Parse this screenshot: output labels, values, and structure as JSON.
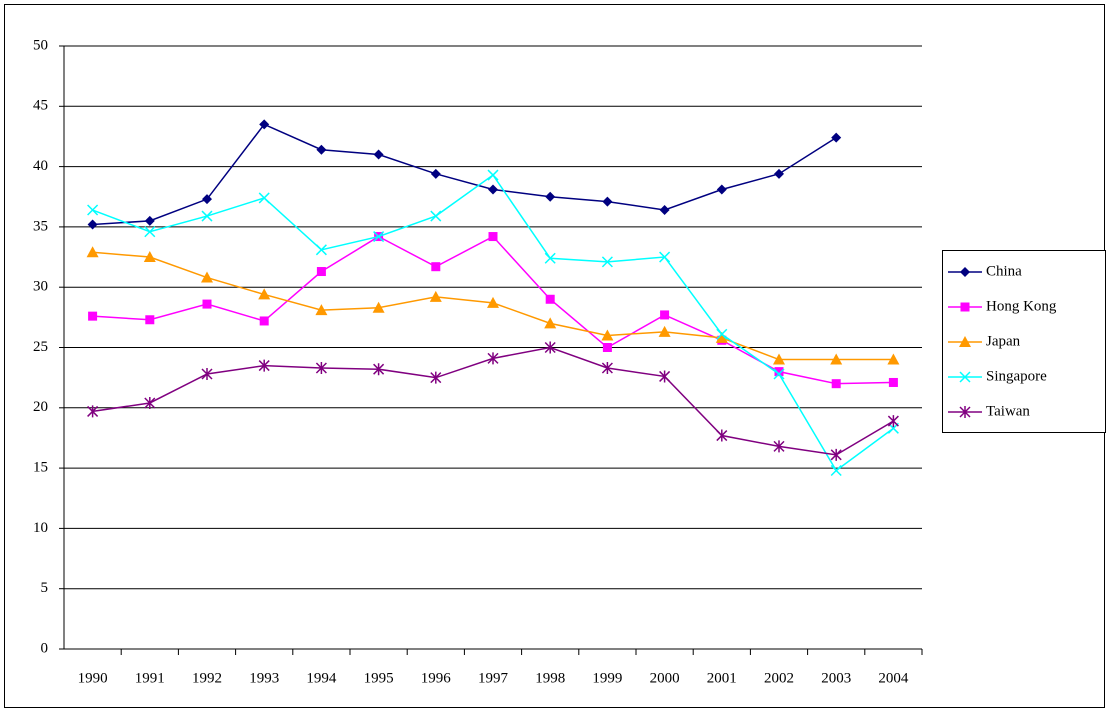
{
  "chart_data": {
    "type": "line",
    "categories": [
      "1990",
      "1991",
      "1992",
      "1993",
      "1994",
      "1995",
      "1996",
      "1997",
      "1998",
      "1999",
      "2000",
      "2001",
      "2002",
      "2003",
      "2004"
    ],
    "series": [
      {
        "name": "China",
        "color": "#000080",
        "marker": "diamond",
        "values": [
          35.2,
          35.5,
          37.3,
          43.5,
          41.4,
          41.0,
          39.4,
          38.1,
          37.5,
          37.1,
          36.4,
          38.1,
          39.4,
          42.4,
          null
        ]
      },
      {
        "name": "Hong Kong",
        "color": "#ff00ff",
        "marker": "square",
        "values": [
          27.6,
          27.3,
          28.6,
          27.2,
          31.3,
          34.2,
          31.7,
          34.2,
          29.0,
          25.0,
          27.7,
          25.6,
          23.0,
          22.0,
          22.1
        ]
      },
      {
        "name": "Japan",
        "color": "#ff9900",
        "marker": "triangle",
        "values": [
          32.9,
          32.5,
          30.8,
          29.4,
          28.1,
          28.3,
          29.2,
          28.7,
          27.0,
          26.0,
          26.3,
          25.8,
          24.0,
          24.0,
          24.0
        ]
      },
      {
        "name": "Singapore",
        "color": "#00ffff",
        "marker": "x",
        "values": [
          36.4,
          34.6,
          35.9,
          37.4,
          33.1,
          34.2,
          35.9,
          39.3,
          32.4,
          32.1,
          32.5,
          26.1,
          22.8,
          14.8,
          18.3
        ]
      },
      {
        "name": "Taiwan",
        "color": "#800080",
        "marker": "star",
        "values": [
          19.7,
          20.4,
          22.8,
          23.5,
          23.3,
          23.2,
          22.5,
          24.1,
          25.0,
          23.3,
          22.6,
          17.7,
          16.8,
          16.1,
          18.9
        ]
      }
    ],
    "ylim": [
      0,
      50
    ],
    "yticks": [
      0,
      5,
      10,
      15,
      20,
      25,
      30,
      35,
      40,
      45,
      50
    ],
    "grid": true,
    "legend": "right"
  }
}
